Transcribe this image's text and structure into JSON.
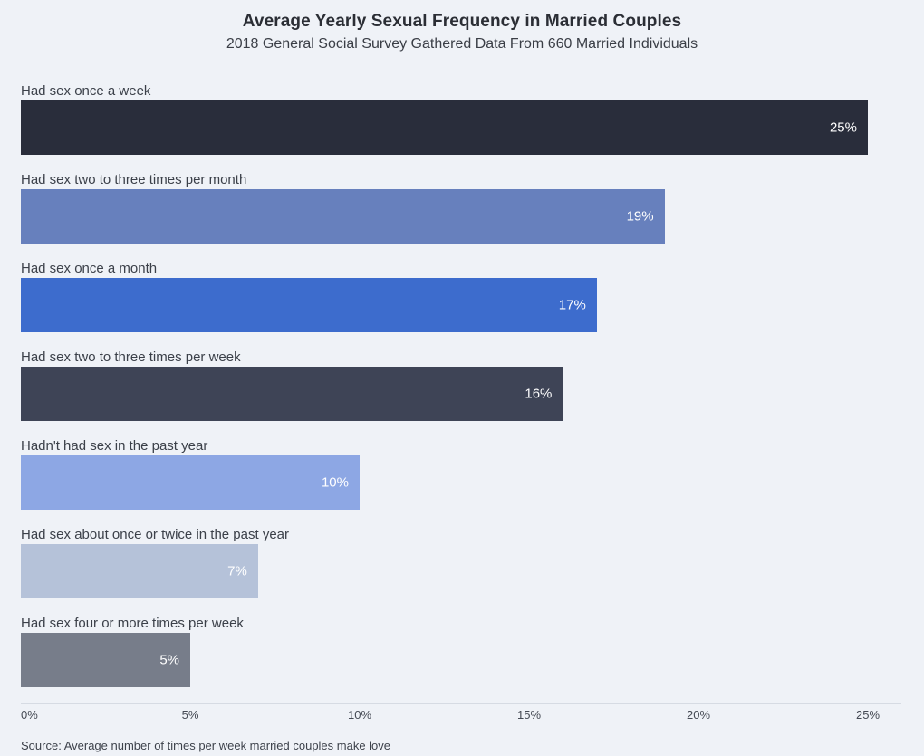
{
  "page": {
    "background": "#eff2f7"
  },
  "header": {
    "title": "Average Yearly Sexual Frequency in Married Couples",
    "subtitle": "2018 General Social Survey Gathered Data From 660 Married Individuals"
  },
  "chart_data": {
    "type": "bar",
    "orientation": "horizontal",
    "title": "Average Yearly Sexual Frequency in Married Couples",
    "subtitle": "2018 General Social Survey Gathered Data From 660 Married Individuals",
    "categories": [
      "Had sex once a week",
      "Had sex two to three times per month",
      "Had sex once a month",
      "Had sex two to three times per week",
      "Hadn't had sex in the past year",
      "Had sex about once or twice in the past year",
      "Had sex four or more times per week"
    ],
    "values": [
      25,
      19,
      17,
      16,
      10,
      7,
      5
    ],
    "value_labels": [
      "25%",
      "19%",
      "17%",
      "16%",
      "10%",
      "7%",
      "5%"
    ],
    "bar_colors": [
      "#292d3b",
      "#6780bd",
      "#3d6ccd",
      "#3e4456",
      "#8da7e4",
      "#b5c2d9",
      "#777d8a"
    ],
    "value_label_position": "inside-end",
    "value_label_color": "#ffffff",
    "xlabel": "",
    "ylabel": "",
    "xlim": [
      0,
      25
    ],
    "x_tick_values": [
      0,
      5,
      10,
      15,
      20,
      25
    ],
    "x_tick_labels": [
      "0%",
      "5%",
      "10%",
      "15%",
      "20%",
      "25%"
    ],
    "grid": false,
    "legend": false
  },
  "footer": {
    "source_prefix": "Source: ",
    "source_link_text": "Average number of times per week married couples make love"
  }
}
